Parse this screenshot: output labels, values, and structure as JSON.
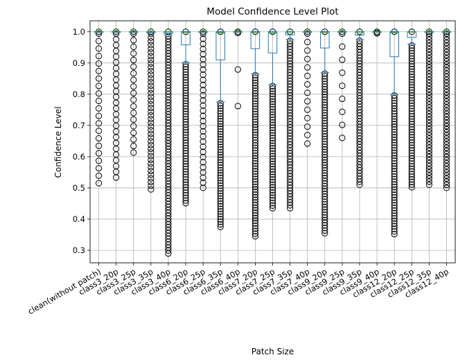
{
  "chart_data": {
    "type": "box",
    "title": "Model Confidence Level Plot",
    "xlabel": "Patch Size",
    "ylabel": "Confidence Level",
    "ylim": [
      0.26,
      1.035
    ],
    "yticks": [
      0.3,
      0.4,
      0.5,
      0.6,
      0.7,
      0.8,
      0.9,
      1.0
    ],
    "ytick_labels": [
      "0.3",
      "0.4",
      "0.5",
      "0.6",
      "0.7",
      "0.8",
      "0.9",
      "1.0"
    ],
    "grid": true,
    "colors": {
      "box": "#1f77b4",
      "median": "#2ca02c",
      "flier": "#000000",
      "grid": "#b0b0b0"
    },
    "categories": [
      "clean(without patch)",
      "class3_20p",
      "class3_25p",
      "class3_35p",
      "class3_40p",
      "class6_20p",
      "class6_25p",
      "class6_35p",
      "class6_40p",
      "class7_20p",
      "class7_25p",
      "class7_35p",
      "class7_40p",
      "class9_20p",
      "class9_25p",
      "class9_35p",
      "class9_40p",
      "class12_20p",
      "class12_25p",
      "class12_35p",
      "class12_40p"
    ],
    "boxes": [
      {
        "q1": 0.999,
        "median": 1.0,
        "q3": 1.0,
        "whislo": 0.998,
        "whishi": 1.0,
        "flier_min": 0.515,
        "flier_density": 0.35
      },
      {
        "q1": 0.999,
        "median": 1.0,
        "q3": 1.0,
        "whislo": 0.998,
        "whishi": 1.0,
        "flier_min": 0.533,
        "flier_density": 0.45
      },
      {
        "q1": 0.999,
        "median": 1.0,
        "q3": 1.0,
        "whislo": 0.998,
        "whishi": 1.0,
        "flier_min": 0.613,
        "flier_density": 0.4
      },
      {
        "q1": 0.999,
        "median": 1.0,
        "q3": 1.0,
        "whislo": 0.997,
        "whishi": 1.0,
        "flier_min": 0.495,
        "flier_density": 0.7
      },
      {
        "q1": 0.995,
        "median": 1.0,
        "q3": 1.0,
        "whislo": 0.99,
        "whishi": 1.0,
        "flier_min": 0.29,
        "flier_density": 0.9
      },
      {
        "q1": 0.958,
        "median": 0.998,
        "q3": 1.0,
        "whislo": 0.9,
        "whishi": 1.0,
        "flier_min": 0.451,
        "flier_density": 1.0
      },
      {
        "q1": 0.999,
        "median": 1.0,
        "q3": 1.0,
        "whislo": 0.998,
        "whishi": 1.0,
        "flier_min": 0.5,
        "flier_density": 0.5
      },
      {
        "q1": 0.91,
        "median": 0.997,
        "q3": 1.0,
        "whislo": 0.775,
        "whishi": 1.0,
        "flier_min": 0.375,
        "flier_density": 1.0
      },
      {
        "q1": 1.0,
        "median": 1.0,
        "q3": 1.0,
        "whislo": 1.0,
        "whishi": 1.0,
        "flier_min": 0.762,
        "flier_density": 0.05
      },
      {
        "q1": 0.946,
        "median": 0.998,
        "q3": 1.0,
        "whislo": 0.865,
        "whishi": 1.0,
        "flier_min": 0.345,
        "flier_density": 1.0
      },
      {
        "q1": 0.932,
        "median": 0.996,
        "q3": 1.0,
        "whislo": 0.83,
        "whishi": 1.0,
        "flier_min": 0.435,
        "flier_density": 1.0
      },
      {
        "q1": 0.99,
        "median": 0.999,
        "q3": 1.0,
        "whislo": 0.975,
        "whishi": 1.0,
        "flier_min": 0.435,
        "flier_density": 0.9
      },
      {
        "q1": 0.999,
        "median": 1.0,
        "q3": 1.0,
        "whislo": 0.998,
        "whishi": 1.0,
        "flier_min": 0.642,
        "flier_density": 0.3
      },
      {
        "q1": 0.948,
        "median": 0.998,
        "q3": 1.0,
        "whislo": 0.87,
        "whishi": 1.0,
        "flier_min": 0.355,
        "flier_density": 1.0
      },
      {
        "q1": 0.999,
        "median": 1.0,
        "q3": 1.0,
        "whislo": 0.998,
        "whishi": 1.0,
        "flier_min": 0.66,
        "flier_density": 0.2
      },
      {
        "q1": 0.989,
        "median": 0.999,
        "q3": 1.0,
        "whislo": 0.975,
        "whishi": 1.0,
        "flier_min": 0.51,
        "flier_density": 0.9
      },
      {
        "q1": 1.0,
        "median": 1.0,
        "q3": 1.0,
        "whislo": 1.0,
        "whishi": 1.0,
        "flier_min": 0.995,
        "flier_density": 0.05
      },
      {
        "q1": 0.92,
        "median": 0.997,
        "q3": 1.0,
        "whislo": 0.8,
        "whishi": 1.0,
        "flier_min": 0.352,
        "flier_density": 1.0
      },
      {
        "q1": 0.982,
        "median": 0.999,
        "q3": 1.0,
        "whislo": 0.96,
        "whishi": 1.0,
        "flier_min": 0.502,
        "flier_density": 1.0
      },
      {
        "q1": 0.999,
        "median": 1.0,
        "q3": 1.0,
        "whislo": 0.998,
        "whishi": 1.0,
        "flier_min": 0.51,
        "flier_density": 0.85
      },
      {
        "q1": 0.999,
        "median": 1.0,
        "q3": 1.0,
        "whislo": 0.998,
        "whishi": 1.0,
        "flier_min": 0.5,
        "flier_density": 0.85
      }
    ]
  }
}
